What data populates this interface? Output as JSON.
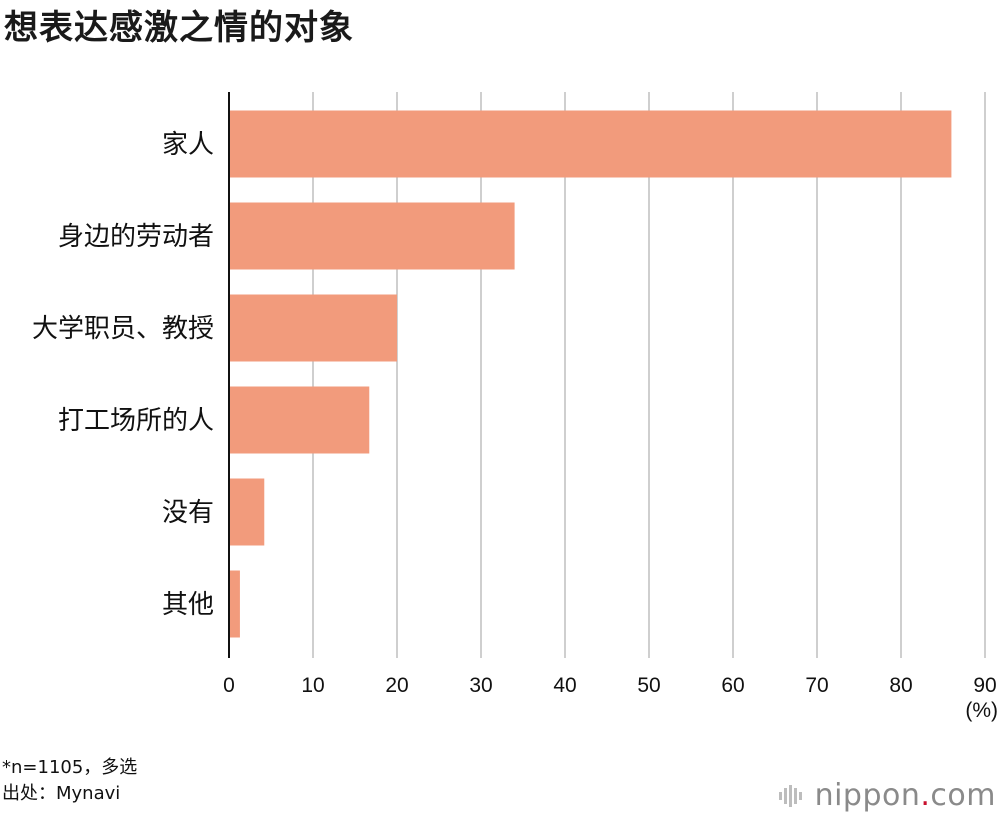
{
  "title": "想表达感激之情的对象",
  "chart_data": {
    "type": "bar",
    "orientation": "horizontal",
    "title": "想表达感激之情的对象",
    "categories": [
      "家人",
      "身边的劳动者",
      "大学职员、教授",
      "打工场所的人",
      "没有",
      "其他"
    ],
    "values": [
      86,
      34,
      20,
      16.7,
      4.2,
      1.3
    ],
    "xlim": [
      0,
      90
    ],
    "xticks": [
      0,
      10,
      20,
      30,
      40,
      50,
      60,
      70,
      80,
      90
    ],
    "unit_label": "(%)",
    "bar_color": "#f29b7c",
    "grid": true,
    "legend": "none"
  },
  "notes": {
    "sample": "*n=1105，多选",
    "source": "出处：Mynavi"
  },
  "brand": {
    "name_main": "nippon",
    "name_dot": ".",
    "name_tail": "com",
    "icon": "nippon-logo-icon"
  }
}
